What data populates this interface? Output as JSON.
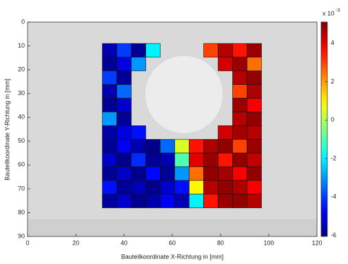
{
  "chart_data": {
    "type": "heatmap",
    "xlabel": "Bauteilkoordinate X-Richtung in [mm]",
    "ylabel": "Bauteilkoordinate Y-Richtung in [mm]",
    "xlim": [
      0,
      120
    ],
    "xticks": [
      0,
      20,
      40,
      60,
      80,
      100,
      120
    ],
    "ylim": [
      0,
      90
    ],
    "yticks": [
      0,
      10,
      20,
      30,
      40,
      50,
      60,
      70,
      80,
      90
    ],
    "y_reversed": true,
    "x_bins": [
      31,
      37,
      43,
      49,
      55,
      61,
      67,
      73,
      79,
      85,
      91,
      97
    ],
    "y_bins": [
      9,
      14.75,
      20.5,
      26.25,
      32,
      37.75,
      43.5,
      49.25,
      55,
      60.75,
      66.5,
      72.25,
      78
    ],
    "values": [
      [
        -5.5,
        -4,
        -5.8,
        -2,
        null,
        null,
        null,
        3,
        4.5,
        3.5,
        4.8
      ],
      [
        -5.8,
        -5,
        -3,
        null,
        null,
        null,
        null,
        null,
        4.2,
        4.8,
        2.5
      ],
      [
        -4,
        -5.8,
        null,
        null,
        null,
        null,
        null,
        null,
        null,
        4.5,
        4.9
      ],
      [
        -5.5,
        -3.5,
        null,
        null,
        null,
        null,
        null,
        null,
        null,
        3,
        4.6
      ],
      [
        -5.8,
        -5.2,
        null,
        null,
        null,
        null,
        null,
        null,
        null,
        4.8,
        3.8
      ],
      [
        -3,
        -5.8,
        null,
        null,
        null,
        null,
        null,
        null,
        null,
        4.5,
        4.9
      ],
      [
        -5.6,
        -5,
        -4.5,
        null,
        null,
        null,
        null,
        null,
        4.2,
        4.7,
        4.5
      ],
      [
        -5.8,
        -4.8,
        -5.5,
        -5.9,
        -3.5,
        0.5,
        3.5,
        4.6,
        4.9,
        3,
        4.8
      ],
      [
        -5.2,
        -5.9,
        -4.2,
        -5.8,
        -5.5,
        -1,
        4,
        4.8,
        3.5,
        4.9,
        4.4
      ],
      [
        -5.8,
        -5.3,
        -5.9,
        -4.6,
        -5.8,
        -3,
        2.5,
        4.9,
        4.7,
        3.8,
        4.9
      ],
      [
        -4.5,
        -5.8,
        -5.4,
        -5.9,
        -5.2,
        -4.5,
        1,
        4.5,
        4.9,
        4.6,
        3.8
      ],
      [
        -5.7,
        -5.2,
        -5.9,
        -5.6,
        -4.8,
        -5.5,
        -2,
        3.5,
        4.8,
        4.9,
        4.5
      ]
    ],
    "colormap": "jet",
    "clim": [
      -6.05,
      5.1
    ],
    "cticks": [
      -6,
      -4,
      -2,
      0,
      2,
      4
    ],
    "colorbar_label": "x 10",
    "colorbar_exponent": "-3"
  }
}
